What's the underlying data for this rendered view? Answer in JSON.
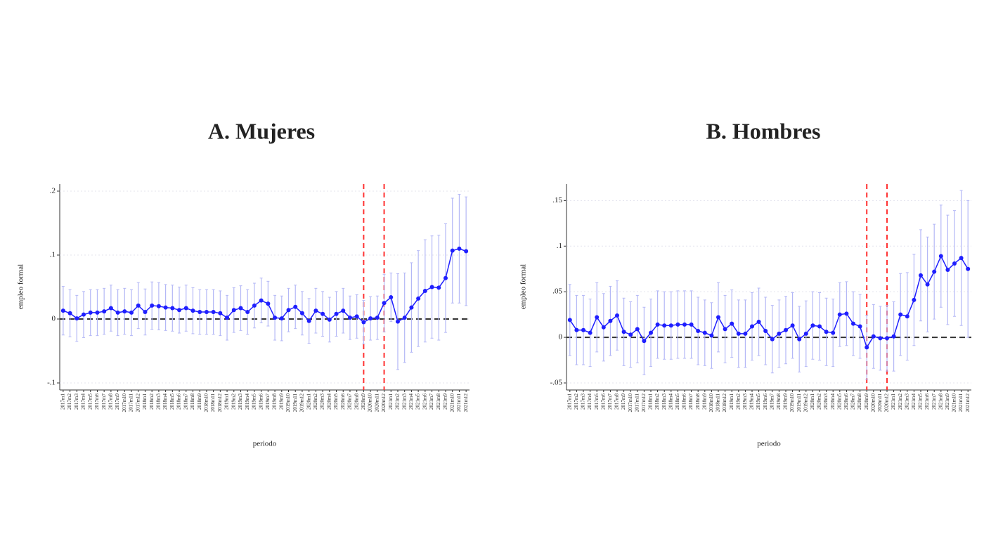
{
  "chart_data": [
    {
      "type": "line",
      "title": "A.  Mujeres",
      "ylabel": "empleo formal",
      "xlabel": "periodo",
      "categories": [
        "2017m1",
        "2017m2",
        "2017m3",
        "2017m4",
        "2017m5",
        "2017m6",
        "2017m7",
        "2017m8",
        "2017m9",
        "2017m10",
        "2017m11",
        "2017m12",
        "2018m1",
        "2018m2",
        "2018m3",
        "2018m4",
        "2018m5",
        "2018m6",
        "2018m7",
        "2018m8",
        "2018m9",
        "2018m10",
        "2018m11",
        "2018m12",
        "2019m1",
        "2019m2",
        "2019m3",
        "2019m4",
        "2019m5",
        "2019m6",
        "2019m7",
        "2019m8",
        "2019m9",
        "2019m10",
        "2019m11",
        "2019m12",
        "2020m1",
        "2020m2",
        "2020m3",
        "2020m4",
        "2020m5",
        "2020m6",
        "2020m7",
        "2020m8",
        "2020m9",
        "2020m10",
        "2020m11",
        "2020m12",
        "2021m1",
        "2021m2",
        "2021m3",
        "2021m4",
        "2021m5",
        "2021m6",
        "2021m7",
        "2021m8",
        "2021m9",
        "2021m10",
        "2021m11",
        "2021m12"
      ],
      "values": [
        0.013,
        0.009,
        0.001,
        0.007,
        0.01,
        0.01,
        0.012,
        0.017,
        0.01,
        0.012,
        0.01,
        0.021,
        0.011,
        0.021,
        0.02,
        0.018,
        0.017,
        0.014,
        0.017,
        0.013,
        0.011,
        0.011,
        0.011,
        0.009,
        0.002,
        0.014,
        0.017,
        0.011,
        0.021,
        0.029,
        0.024,
        0.002,
        0.001,
        0.014,
        0.019,
        0.009,
        -0.003,
        0.013,
        0.008,
        -0.001,
        0.008,
        0.013,
        0.002,
        0.004,
        -0.005,
        0.001,
        0.002,
        0.025,
        0.034,
        -0.004,
        0.002,
        0.018,
        0.032,
        0.044,
        0.05,
        0.049,
        0.064,
        0.107,
        0.11,
        0.106
      ],
      "errors": [
        0.038,
        0.037,
        0.036,
        0.036,
        0.036,
        0.036,
        0.036,
        0.036,
        0.036,
        0.036,
        0.036,
        0.036,
        0.036,
        0.037,
        0.037,
        0.036,
        0.036,
        0.036,
        0.036,
        0.036,
        0.035,
        0.035,
        0.035,
        0.035,
        0.035,
        0.035,
        0.035,
        0.035,
        0.035,
        0.035,
        0.035,
        0.035,
        0.035,
        0.034,
        0.034,
        0.034,
        0.035,
        0.035,
        0.035,
        0.035,
        0.035,
        0.035,
        0.034,
        0.034,
        0.034,
        0.034,
        0.034,
        0.045,
        0.038,
        0.075,
        0.07,
        0.07,
        0.075,
        0.08,
        0.08,
        0.082,
        0.085,
        0.082,
        0.085,
        0.085
      ],
      "color": "#1f1fff",
      "error_color": "#b4b8f6",
      "ylim": [
        -0.111,
        0.211
      ],
      "yticks": [
        {
          "value": -0.1,
          "label": "-.1"
        },
        0,
        {
          "value": 0.1,
          "label": ".1"
        },
        {
          "value": 0.2,
          "label": ".2"
        }
      ],
      "reference_line": 0,
      "vlines": [
        "2020m9",
        "2020m12"
      ],
      "vline_color": "#ff3333"
    },
    {
      "type": "line",
      "title": "B.  Hombres",
      "ylabel": "empleo formal",
      "xlabel": "periodo",
      "categories": [
        "2017m1",
        "2017m2",
        "2017m3",
        "2017m4",
        "2017m5",
        "2017m6",
        "2017m7",
        "2017m8",
        "2017m9",
        "2017m10",
        "2017m11",
        "2017m12",
        "2018m1",
        "2018m2",
        "2018m3",
        "2018m4",
        "2018m5",
        "2018m6",
        "2018m7",
        "2018m8",
        "2018m9",
        "2018m10",
        "2018m11",
        "2018m12",
        "2019m1",
        "2019m2",
        "2019m3",
        "2019m4",
        "2019m5",
        "2019m6",
        "2019m7",
        "2019m8",
        "2019m9",
        "2019m10",
        "2019m11",
        "2019m12",
        "2020m1",
        "2020m2",
        "2020m3",
        "2020m4",
        "2020m5",
        "2020m6",
        "2020m7",
        "2020m8",
        "2020m9",
        "2020m10",
        "2020m11",
        "2020m12",
        "2021m1",
        "2021m2",
        "2021m3",
        "2021m4",
        "2021m5",
        "2021m6",
        "2021m7",
        "2021m8",
        "2021m9",
        "2021m10",
        "2021m11",
        "2021m12"
      ],
      "values": [
        0.019,
        0.008,
        0.008,
        0.005,
        0.022,
        0.011,
        0.018,
        0.024,
        0.006,
        0.003,
        0.009,
        -0.004,
        0.005,
        0.014,
        0.013,
        0.013,
        0.014,
        0.014,
        0.014,
        0.007,
        0.005,
        0.002,
        0.022,
        0.009,
        0.015,
        0.004,
        0.004,
        0.012,
        0.017,
        0.007,
        -0.002,
        0.004,
        0.008,
        0.013,
        -0.002,
        0.004,
        0.013,
        0.012,
        0.006,
        0.005,
        0.025,
        0.026,
        0.015,
        0.012,
        -0.011,
        0.001,
        -0.001,
        -0.001,
        0.001,
        0.025,
        0.023,
        0.041,
        0.068,
        0.058,
        0.072,
        0.089,
        0.074,
        0.081,
        0.087,
        0.075
      ],
      "errors": [
        0.039,
        0.038,
        0.038,
        0.037,
        0.038,
        0.037,
        0.038,
        0.038,
        0.037,
        0.036,
        0.037,
        0.037,
        0.037,
        0.037,
        0.037,
        0.037,
        0.037,
        0.037,
        0.037,
        0.037,
        0.036,
        0.036,
        0.038,
        0.037,
        0.037,
        0.037,
        0.037,
        0.037,
        0.037,
        0.037,
        0.037,
        0.037,
        0.037,
        0.036,
        0.036,
        0.036,
        0.037,
        0.037,
        0.037,
        0.037,
        0.035,
        0.035,
        0.035,
        0.035,
        0.035,
        0.035,
        0.035,
        0.036,
        0.038,
        0.045,
        0.048,
        0.05,
        0.05,
        0.052,
        0.052,
        0.056,
        0.06,
        0.058,
        0.074,
        0.075
      ],
      "color": "#1f1fff",
      "error_color": "#b4b8f6",
      "ylim": [
        -0.0577,
        0.168
      ],
      "yticks": [
        {
          "value": -0.05,
          "label": "-.05"
        },
        0,
        {
          "value": 0.05,
          "label": ".05"
        },
        {
          "value": 0.1,
          "label": ".1"
        },
        {
          "value": 0.15,
          "label": ".15"
        }
      ],
      "reference_line": 0,
      "vlines": [
        "2020m9",
        "2020m12"
      ],
      "vline_color": "#ff3333"
    }
  ]
}
